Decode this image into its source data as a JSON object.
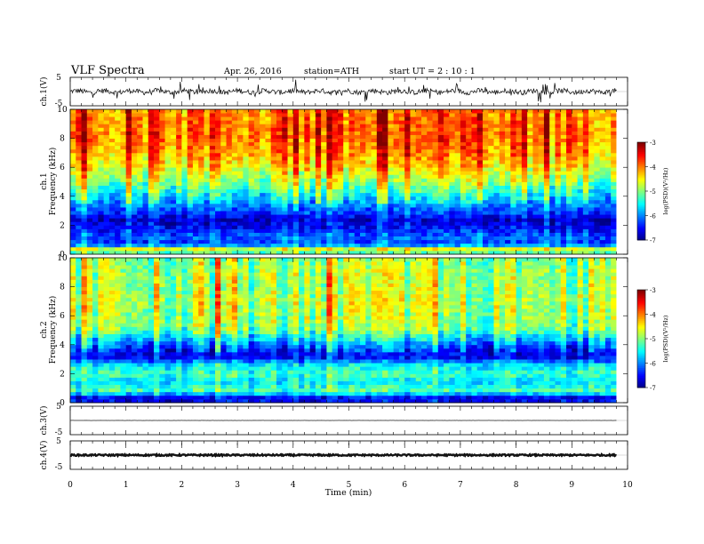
{
  "header": {
    "title": "VLF  Spectra",
    "date": "Apr. 26, 2016",
    "station": "station=ATH",
    "start": "start  UT  =   2  : 10 : 1"
  },
  "chart_data": [
    {
      "type": "line",
      "panel": "ch1-waveform",
      "ylabel": "ch.1(V)",
      "ylim": [
        -5,
        5
      ],
      "yticks": [
        "5",
        "-5"
      ],
      "baseline": 0,
      "xlim": [
        0,
        10
      ],
      "data_end": 9.8
    },
    {
      "type": "heatmap",
      "panel": "ch1-spectrogram",
      "ylabel_channel": "ch.1",
      "ylabel": "Frequency  (kHz)",
      "ylim": [
        0,
        10
      ],
      "yticks": [
        "0",
        "2",
        "4",
        "6",
        "8",
        "10"
      ],
      "xlim": [
        0,
        10
      ],
      "data_end": 9.8,
      "profile_log_psd": [
        {
          "f": 0.0,
          "v": -5.3
        },
        {
          "f": 0.4,
          "v": -4.6
        },
        {
          "f": 0.7,
          "v": -6.3
        },
        {
          "f": 1.2,
          "v": -6.1
        },
        {
          "f": 1.8,
          "v": -6.5
        },
        {
          "f": 2.4,
          "v": -6.7
        },
        {
          "f": 3.0,
          "v": -6.2
        },
        {
          "f": 3.6,
          "v": -5.8
        },
        {
          "f": 4.2,
          "v": -5.4
        },
        {
          "f": 5.0,
          "v": -4.9
        },
        {
          "f": 6.0,
          "v": -4.4
        },
        {
          "f": 7.0,
          "v": -4.1
        },
        {
          "f": 8.0,
          "v": -3.9
        },
        {
          "f": 9.0,
          "v": -3.9
        },
        {
          "f": 10.0,
          "v": -4.0
        }
      ],
      "colorbar": {
        "label": "log(PSD)(V²/Hz)",
        "range": [
          -7,
          -3
        ],
        "ticks": [
          "-3",
          "-4",
          "-5",
          "-6",
          "-7"
        ]
      }
    },
    {
      "type": "heatmap",
      "panel": "ch2-spectrogram",
      "ylabel_channel": "ch.2",
      "ylabel": "Frequency  (kHz)",
      "ylim": [
        0,
        10
      ],
      "yticks": [
        "0",
        "2",
        "4",
        "6",
        "8",
        "10"
      ],
      "xlim": [
        0,
        10
      ],
      "data_end": 9.8,
      "profile_log_psd": [
        {
          "f": 0.0,
          "v": -6.4
        },
        {
          "f": 0.3,
          "v": -6.8
        },
        {
          "f": 0.8,
          "v": -5.2
        },
        {
          "f": 1.4,
          "v": -5.6
        },
        {
          "f": 2.0,
          "v": -5.3
        },
        {
          "f": 2.6,
          "v": -5.6
        },
        {
          "f": 3.2,
          "v": -6.6
        },
        {
          "f": 3.8,
          "v": -6.3
        },
        {
          "f": 4.4,
          "v": -5.7
        },
        {
          "f": 5.2,
          "v": -5.0
        },
        {
          "f": 6.0,
          "v": -4.9
        },
        {
          "f": 7.0,
          "v": -4.8
        },
        {
          "f": 8.0,
          "v": -4.9
        },
        {
          "f": 9.0,
          "v": -4.9
        },
        {
          "f": 10.0,
          "v": -5.0
        }
      ],
      "colorbar": {
        "label": "log(PSD)(V²/Hz)",
        "range": [
          -7,
          -3
        ],
        "ticks": [
          "-3",
          "-4",
          "-5",
          "-6",
          "-7"
        ]
      }
    },
    {
      "type": "line",
      "panel": "ch3-waveform",
      "ylabel": "ch.3(V)",
      "ylim": [
        -5,
        5
      ],
      "yticks": [
        "5",
        "-5"
      ],
      "baseline": 0,
      "xlim": [
        0,
        10
      ],
      "data_end": 9.8
    },
    {
      "type": "line",
      "panel": "ch4-waveform",
      "ylabel": "ch.4(V)",
      "ylim": [
        -5,
        5
      ],
      "yticks": [
        "5",
        "-5"
      ],
      "baseline": 0,
      "xlim": [
        0,
        10
      ],
      "data_end": 9.8
    }
  ],
  "xaxis": {
    "label": "Time  (min)",
    "ticks": [
      "0",
      "1",
      "2",
      "3",
      "4",
      "5",
      "6",
      "7",
      "8",
      "9",
      "10"
    ]
  }
}
